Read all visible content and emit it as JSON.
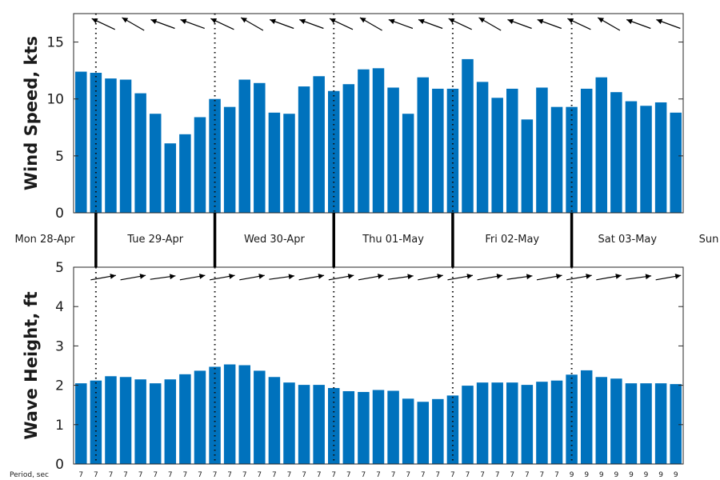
{
  "chart_data": [
    {
      "type": "bar",
      "ylabel": "Wind Speed, kts",
      "ylim": [
        0,
        17.5
      ],
      "yticks": [
        0,
        5,
        10,
        15
      ],
      "color": "#0072BD",
      "values": [
        12.4,
        12.3,
        11.8,
        11.7,
        10.5,
        8.7,
        6.1,
        6.9,
        8.4,
        10.0,
        9.3,
        11.7,
        11.4,
        8.8,
        8.7,
        11.1,
        12.0,
        10.7,
        11.3,
        12.6,
        12.7,
        11.0,
        8.7,
        11.9,
        10.9,
        10.9,
        13.5,
        11.5,
        10.1,
        10.9,
        8.2,
        11.0,
        9.3,
        9.3,
        10.9,
        11.9,
        10.6,
        9.8,
        9.4,
        9.7,
        8.8
      ],
      "direction_arrows": "wind direction arrows pointing mostly toward the west-northwest"
    },
    {
      "type": "bar",
      "ylabel": "Wave Height, ft",
      "ylim": [
        0,
        5
      ],
      "yticks": [
        0,
        1,
        2,
        3,
        4,
        5
      ],
      "color": "#0072BD",
      "values": [
        2.05,
        2.12,
        2.23,
        2.21,
        2.15,
        2.05,
        2.15,
        2.28,
        2.37,
        2.47,
        2.53,
        2.51,
        2.37,
        2.21,
        2.07,
        2.01,
        2.01,
        1.93,
        1.85,
        1.83,
        1.88,
        1.86,
        1.66,
        1.58,
        1.65,
        1.74,
        1.99,
        2.07,
        2.07,
        2.07,
        2.01,
        2.09,
        2.12,
        2.27,
        2.38,
        2.21,
        2.17,
        2.05,
        2.05,
        2.05,
        2.03
      ],
      "direction_arrows": "wave direction arrows pointing toward the east-northeast"
    }
  ],
  "day_labels": [
    "Mon 28-Apr",
    "Tue 29-Apr",
    "Wed 30-Apr",
    "Thu 01-May",
    "Fri 02-May",
    "Sat 03-May",
    "Sun"
  ],
  "period_label": "Period, sec",
  "periods": [
    "7",
    "7",
    "7",
    "7",
    "7",
    "7",
    "7",
    "7",
    "7",
    "7",
    "7",
    "7",
    "7",
    "7",
    "7",
    "7",
    "7",
    "7",
    "7",
    "7",
    "7",
    "7",
    "7",
    "7",
    "7",
    "7",
    "7",
    "7",
    "7",
    "7",
    "7",
    "7",
    "7",
    "9",
    "9",
    "9",
    "9",
    "9",
    "9",
    "9",
    "9"
  ]
}
